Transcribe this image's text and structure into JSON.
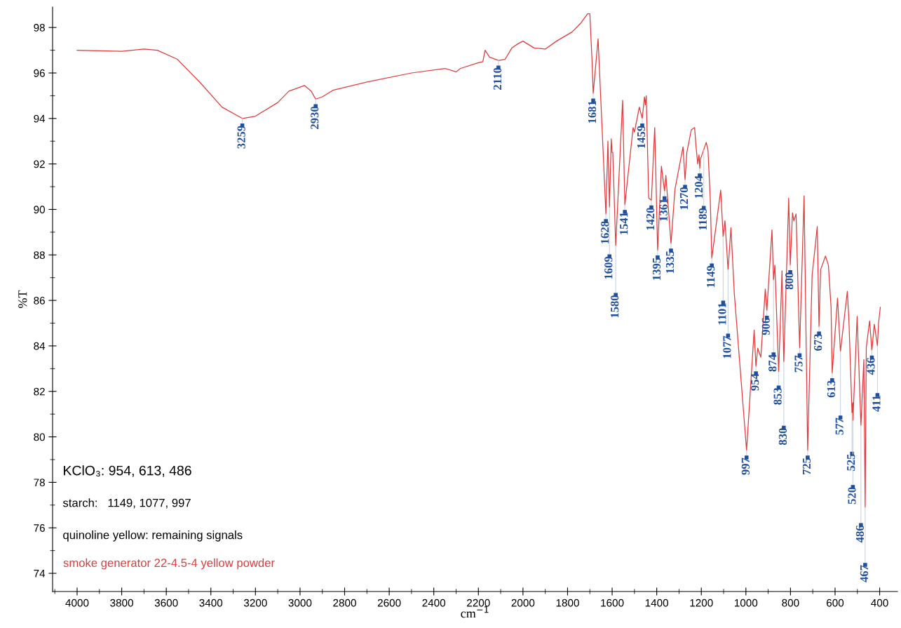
{
  "chart_data": {
    "type": "line",
    "xlabel": "cm$^{−1}$",
    "ylabel": "%T",
    "xlim": [
      4110,
      320
    ],
    "ylim": [
      73.2,
      98.9
    ],
    "xticks": [
      4000,
      3800,
      3600,
      3400,
      3200,
      3000,
      2800,
      2600,
      2400,
      2200,
      2000,
      1800,
      1600,
      1400,
      1200,
      1000,
      800,
      600,
      400
    ],
    "yticks": [
      74,
      76,
      78,
      80,
      82,
      84,
      86,
      88,
      90,
      92,
      94,
      96,
      98
    ],
    "grid": false,
    "legend": "bottom left",
    "marker": "none",
    "line_style": "solid",
    "series": [
      {
        "name": "smoke generator 22-4.5-4 yellow powder",
        "color": "#e03a3a",
        "x": [
          4000,
          3800,
          3700,
          3640,
          3550,
          3450,
          3350,
          3259,
          3200,
          3100,
          3050,
          2980,
          2950,
          2930,
          2900,
          2850,
          2700,
          2500,
          2350,
          2300,
          2280,
          2200,
          2180,
          2170,
          2150,
          2110,
          2080,
          2050,
          2020,
          2000,
          1950,
          1900,
          1850,
          1780,
          1740,
          1710,
          1700,
          1690,
          1685,
          1663,
          1628,
          1619,
          1612,
          1604,
          1600,
          1597,
          1584,
          1553,
          1543,
          1506,
          1500,
          1478,
          1465,
          1455,
          1451,
          1447,
          1436,
          1424,
          1409,
          1396,
          1379,
          1365,
          1359,
          1336,
          1318,
          1282,
          1273,
          1265,
          1245,
          1230,
          1224,
          1216,
          1210,
          1207,
          1204,
          1178,
          1170,
          1160,
          1153,
          1113,
          1102,
          1094,
          1080,
          1067,
          1052,
          997,
          963,
          955,
          947,
          933,
          913,
          906,
          883,
          876,
          870,
          853,
          838,
          830,
          808,
          801,
          791,
          785,
          775,
          759,
          739,
          723,
          703,
          680,
          672,
          665,
          643,
          630,
          618,
          613,
          589,
          576,
          545,
          538,
          524,
          521,
          520,
          501,
          484,
          471,
          465,
          460,
          445,
          435,
          424,
          410,
          405,
          397
        ],
        "values": [
          97.0,
          96.95,
          97.05,
          97.0,
          96.6,
          95.6,
          94.5,
          94.0,
          94.1,
          94.7,
          95.2,
          95.45,
          95.2,
          94.85,
          94.95,
          95.25,
          95.6,
          96.0,
          96.2,
          96.05,
          96.2,
          96.45,
          96.5,
          97.0,
          96.7,
          96.55,
          96.6,
          97.1,
          97.3,
          97.4,
          97.1,
          97.05,
          97.4,
          97.8,
          98.2,
          98.6,
          98.6,
          96.5,
          95.1,
          97.5,
          89.8,
          93.0,
          90.1,
          93.1,
          92.5,
          92.5,
          88.4,
          94.8,
          90.2,
          93.6,
          93.4,
          94.5,
          94.0,
          94.95,
          94.6,
          95.0,
          90.5,
          90.4,
          93.6,
          88.2,
          91.9,
          90.8,
          91.5,
          88.5,
          90.9,
          92.75,
          91.3,
          92.5,
          93.5,
          93.6,
          92.8,
          92.0,
          92.4,
          91.8,
          92.2,
          92.95,
          92.6,
          90.5,
          87.85,
          90.85,
          88.8,
          89.5,
          87.35,
          89.2,
          86.3,
          79.4,
          84.7,
          83.1,
          83.9,
          83.5,
          86.5,
          85.55,
          89.1,
          86.9,
          87.55,
          82.85,
          87.3,
          83.3,
          90.5,
          87.55,
          89.85,
          89.5,
          89.8,
          83.9,
          90.6,
          79.4,
          87.1,
          89.25,
          84.85,
          87.35,
          87.95,
          87.55,
          85.7,
          82.8,
          86.1,
          83.75,
          86.4,
          85.15,
          81.05,
          81.5,
          80.7,
          85.3,
          80.5,
          83.4,
          76.9,
          83.95,
          85.1,
          83.8,
          84.95,
          84.0,
          85.0,
          85.7
        ]
      }
    ],
    "annotations": [
      "KClO₃: 954, 613, 486",
      "starch:   1149, 1077, 997",
      "quinoline yellow: remaining signals",
      {
        "text": "3259",
        "x": 3259,
        "y": 94.0
      },
      {
        "text": "2930",
        "x": 2930,
        "y": 94.85
      },
      {
        "text": "2110",
        "x": 2110,
        "y": 96.55
      },
      {
        "text": "1681",
        "x": 1685,
        "y": 95.1
      },
      {
        "text": "1459",
        "x": 1465,
        "y": 94.0
      },
      {
        "text": "1628",
        "x": 1628,
        "y": 89.8
      },
      {
        "text": "1609",
        "x": 1612,
        "y": 90.1
      },
      {
        "text": "1580",
        "x": 1584,
        "y": 88.4
      },
      {
        "text": "1541",
        "x": 1543,
        "y": 90.2
      },
      {
        "text": "1420",
        "x": 1424,
        "y": 90.4
      },
      {
        "text": "1395",
        "x": 1396,
        "y": 88.2
      },
      {
        "text": "1361",
        "x": 1365,
        "y": 90.8
      },
      {
        "text": "1335",
        "x": 1336,
        "y": 88.5
      },
      {
        "text": "1270",
        "x": 1273,
        "y": 91.3
      },
      {
        "text": "1204",
        "x": 1207,
        "y": 91.8
      },
      {
        "text": "1189",
        "x": 1189,
        "y": 92.6
      },
      {
        "text": "1149",
        "x": 1153,
        "y": 87.85
      },
      {
        "text": "1101",
        "x": 1102,
        "y": 88.8
      },
      {
        "text": "1077",
        "x": 1080,
        "y": 87.35
      },
      {
        "text": "997",
        "x": 997,
        "y": 79.4
      },
      {
        "text": "954",
        "x": 955,
        "y": 83.1
      },
      {
        "text": "906",
        "x": 906,
        "y": 85.55
      },
      {
        "text": "874",
        "x": 876,
        "y": 86.9
      },
      {
        "text": "853",
        "x": 853,
        "y": 82.85
      },
      {
        "text": "830",
        "x": 830,
        "y": 83.3
      },
      {
        "text": "800",
        "x": 801,
        "y": 87.55
      },
      {
        "text": "757",
        "x": 759,
        "y": 83.9
      },
      {
        "text": "725",
        "x": 723,
        "y": 79.4
      },
      {
        "text": "673",
        "x": 672,
        "y": 84.85
      },
      {
        "text": "613",
        "x": 613,
        "y": 82.8
      },
      {
        "text": "577",
        "x": 576,
        "y": 83.75
      },
      {
        "text": "525",
        "x": 524,
        "y": 81.05
      },
      {
        "text": "520",
        "x": 520,
        "y": 80.7
      },
      {
        "text": "486",
        "x": 484,
        "y": 80.5
      },
      {
        "text": "467",
        "x": 465,
        "y": 76.9
      },
      {
        "text": "436",
        "x": 435,
        "y": 83.8
      },
      {
        "text": "411",
        "x": 410,
        "y": 84.0
      }
    ]
  }
}
